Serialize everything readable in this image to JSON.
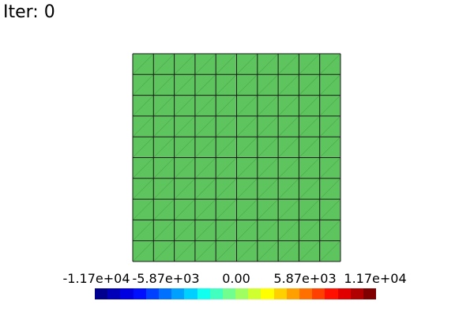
{
  "title": "Iter: 0",
  "mesh": {
    "cells_x": 10,
    "cells_y": 10,
    "fill_color": "#5ec55e",
    "edge_color": "#1a1a1a",
    "diagonal_color": "#4fae4f"
  },
  "colorbar": {
    "ticks": [
      "-1.17e+04",
      "-5.87e+03",
      "0.00",
      "5.87e+03",
      "1.17e+04"
    ],
    "colors": [
      "#00008f",
      "#0000b8",
      "#0000e0",
      "#0010ff",
      "#0040ff",
      "#0070ff",
      "#00a0ff",
      "#00d0ff",
      "#10ffef",
      "#40ffbf",
      "#70ff8f",
      "#a0ff60",
      "#d0ff30",
      "#ffff00",
      "#ffd000",
      "#ffa000",
      "#ff7000",
      "#ff4000",
      "#ff1000",
      "#e00000",
      "#b00000",
      "#800000"
    ]
  }
}
